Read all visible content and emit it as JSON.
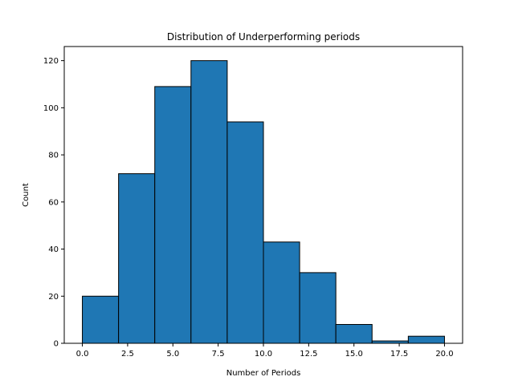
{
  "chart_data": {
    "type": "bar",
    "title": "Distribution of Underperforming periods",
    "xlabel": "Number of Periods",
    "ylabel": "Count",
    "bin_edges": [
      0,
      2,
      4,
      6,
      8,
      10,
      12,
      14,
      16,
      18,
      20
    ],
    "values": [
      20,
      72,
      109,
      120,
      94,
      43,
      30,
      8,
      1,
      3
    ],
    "xlim": [
      -1,
      21
    ],
    "ylim": [
      0,
      126
    ],
    "xticks": [
      0,
      2.5,
      5,
      7.5,
      10,
      12.5,
      15,
      17.5,
      20
    ],
    "xtick_labels": [
      "0.0",
      "2.5",
      "5.0",
      "7.5",
      "10.0",
      "12.5",
      "15.0",
      "17.5",
      "20.0"
    ],
    "yticks": [
      0,
      20,
      40,
      60,
      80,
      100,
      120
    ],
    "ytick_labels": [
      "0",
      "20",
      "40",
      "60",
      "80",
      "100",
      "120"
    ],
    "bar_color": "#1f77b4",
    "edge_color": "#000000",
    "grid": false,
    "legend": "none"
  }
}
